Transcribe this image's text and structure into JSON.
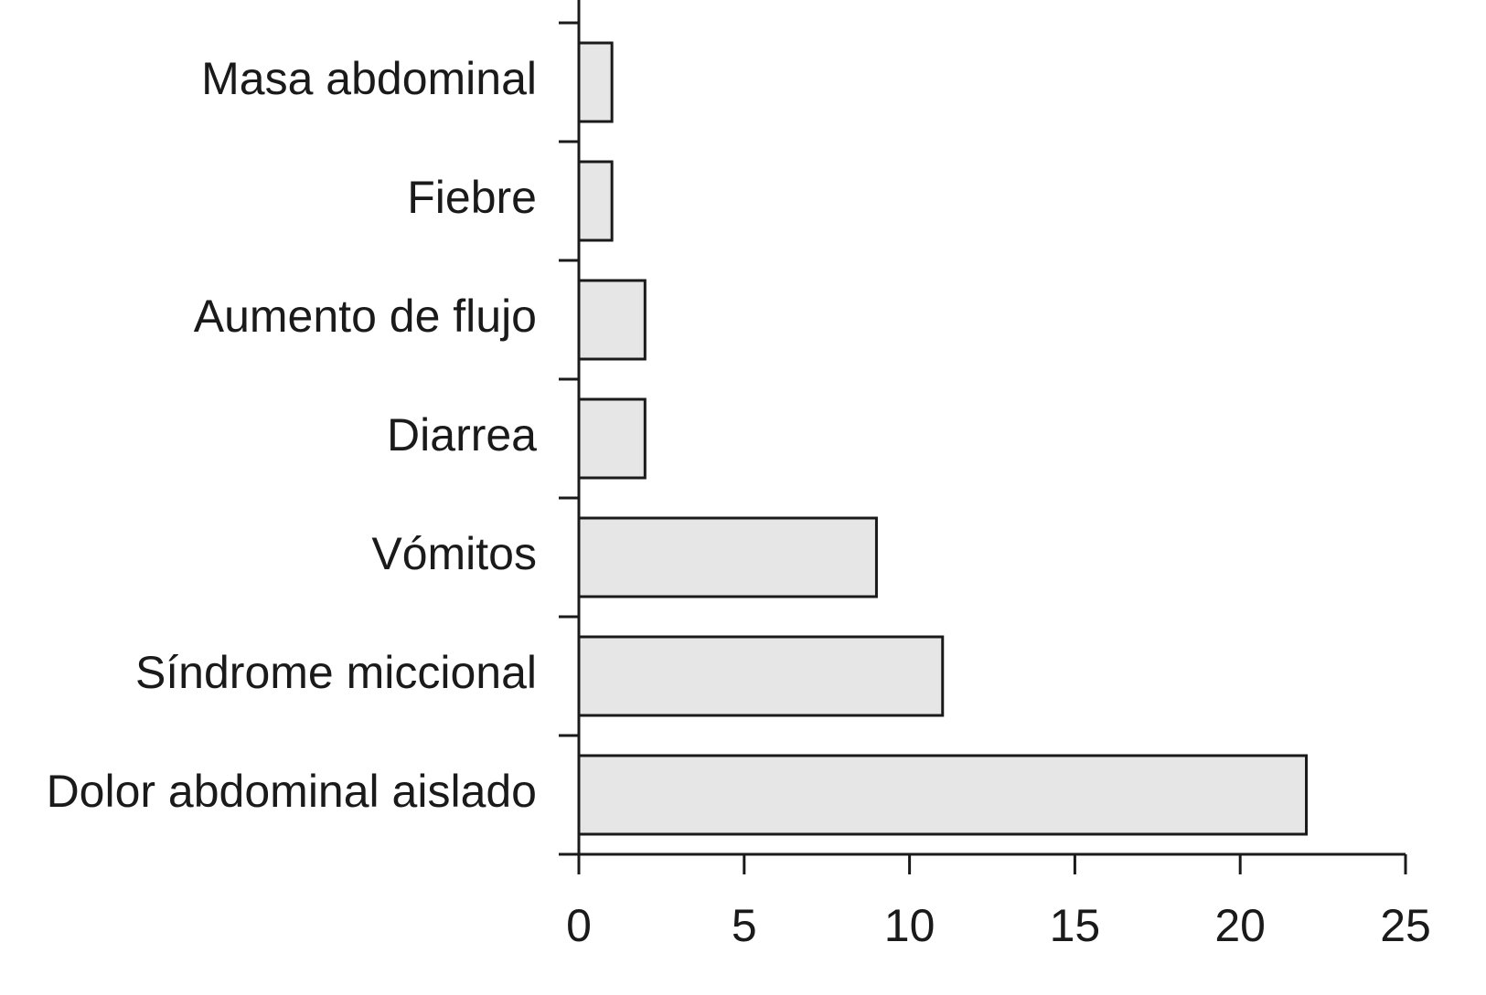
{
  "chart_data": {
    "type": "hbar",
    "categories": [
      "Masa abdominal",
      "Fiebre",
      "Aumento de flujo",
      "Diarrea",
      "Vómitos",
      "Síndrome miccional",
      "Dolor abdominal aislado"
    ],
    "values": [
      1,
      1,
      2,
      2,
      9,
      11,
      22
    ],
    "color": "#e6e6e6",
    "xlim": [
      0,
      25
    ],
    "xticks": [
      0,
      5,
      10,
      15,
      20,
      25
    ]
  }
}
